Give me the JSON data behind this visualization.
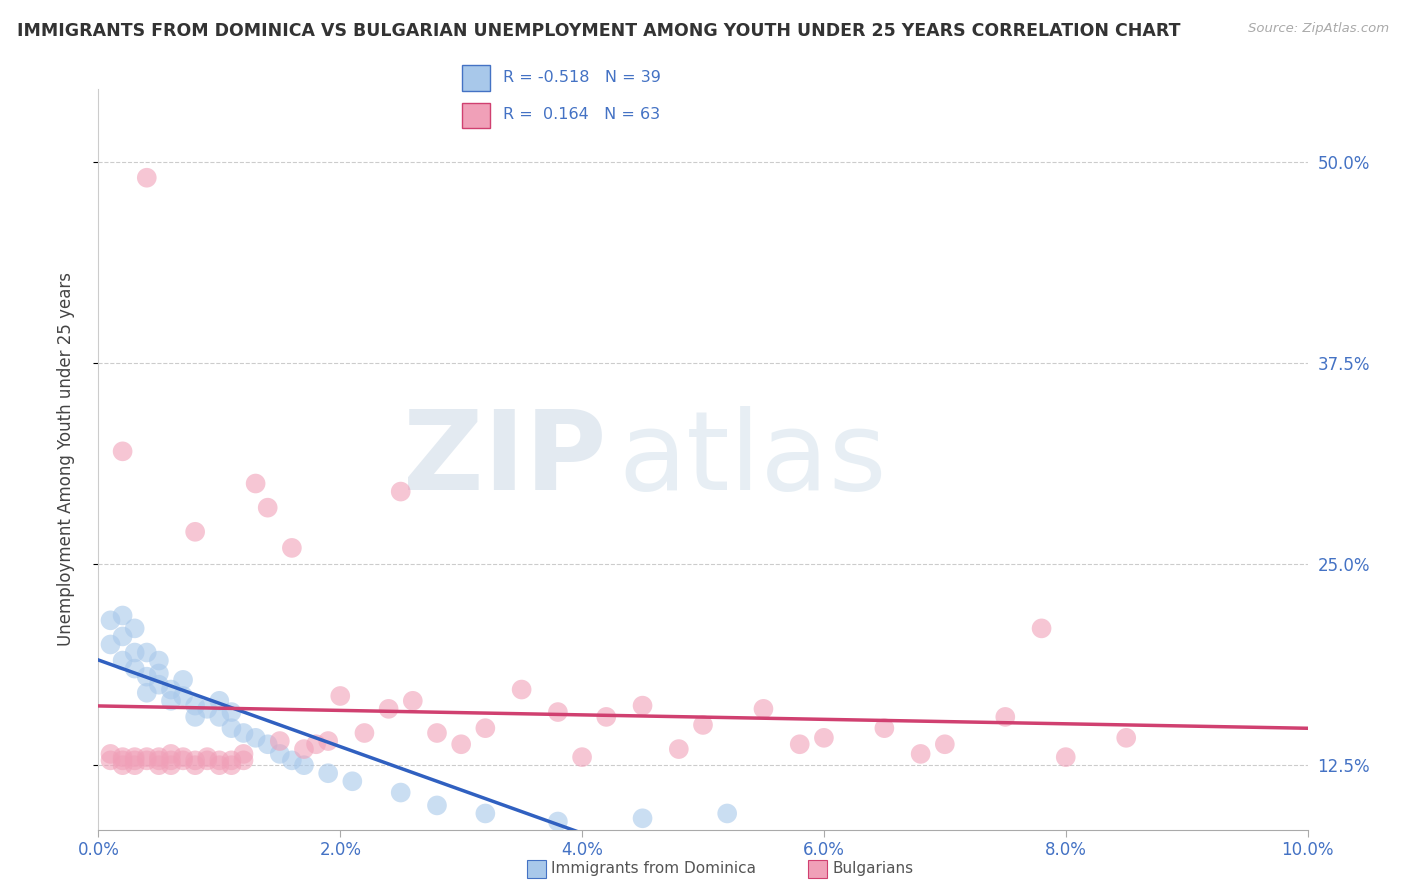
{
  "title": "IMMIGRANTS FROM DOMINICA VS BULGARIAN UNEMPLOYMENT AMONG YOUTH UNDER 25 YEARS CORRELATION CHART",
  "source": "Source: ZipAtlas.com",
  "ylabel": "Unemployment Among Youth under 25 years",
  "xlim_min": 0.0,
  "xlim_max": 0.1,
  "ylim_min": 0.085,
  "ylim_max": 0.545,
  "xticks": [
    0.0,
    0.02,
    0.04,
    0.06,
    0.08,
    0.1
  ],
  "xticklabels": [
    "0.0%",
    "2.0%",
    "4.0%",
    "6.0%",
    "8.0%",
    "10.0%"
  ],
  "yticks": [
    0.125,
    0.25,
    0.375,
    0.5
  ],
  "yticklabels": [
    "12.5%",
    "25.0%",
    "37.5%",
    "50.0%"
  ],
  "blue_color": "#a8c8ea",
  "pink_color": "#f0a0b8",
  "blue_line_color": "#3060c0",
  "pink_line_color": "#d04070",
  "watermark_zip": "ZIP",
  "watermark_atlas": "atlas",
  "blue_x": [
    0.001,
    0.001,
    0.002,
    0.002,
    0.002,
    0.003,
    0.003,
    0.003,
    0.004,
    0.004,
    0.004,
    0.005,
    0.005,
    0.005,
    0.006,
    0.006,
    0.007,
    0.007,
    0.008,
    0.008,
    0.009,
    0.01,
    0.01,
    0.011,
    0.011,
    0.012,
    0.013,
    0.014,
    0.015,
    0.016,
    0.017,
    0.019,
    0.021,
    0.025,
    0.028,
    0.032,
    0.038,
    0.045,
    0.052
  ],
  "blue_y": [
    0.2,
    0.215,
    0.19,
    0.205,
    0.218,
    0.195,
    0.185,
    0.21,
    0.18,
    0.195,
    0.17,
    0.182,
    0.175,
    0.19,
    0.172,
    0.165,
    0.168,
    0.178,
    0.162,
    0.155,
    0.16,
    0.155,
    0.165,
    0.158,
    0.148,
    0.145,
    0.142,
    0.138,
    0.132,
    0.128,
    0.125,
    0.12,
    0.115,
    0.108,
    0.1,
    0.095,
    0.09,
    0.092,
    0.095
  ],
  "pink_x": [
    0.001,
    0.001,
    0.002,
    0.002,
    0.002,
    0.003,
    0.003,
    0.003,
    0.004,
    0.004,
    0.004,
    0.005,
    0.005,
    0.005,
    0.006,
    0.006,
    0.006,
    0.007,
    0.007,
    0.008,
    0.008,
    0.009,
    0.009,
    0.01,
    0.01,
    0.011,
    0.011,
    0.012,
    0.012,
    0.013,
    0.014,
    0.015,
    0.016,
    0.017,
    0.018,
    0.019,
    0.02,
    0.022,
    0.024,
    0.026,
    0.028,
    0.03,
    0.032,
    0.035,
    0.038,
    0.04,
    0.042,
    0.045,
    0.048,
    0.05,
    0.055,
    0.058,
    0.06,
    0.065,
    0.068,
    0.07,
    0.075,
    0.078,
    0.08,
    0.085,
    0.002,
    0.008,
    0.025
  ],
  "pink_y": [
    0.132,
    0.128,
    0.13,
    0.128,
    0.125,
    0.128,
    0.13,
    0.125,
    0.49,
    0.13,
    0.128,
    0.125,
    0.13,
    0.128,
    0.128,
    0.125,
    0.132,
    0.13,
    0.128,
    0.128,
    0.125,
    0.13,
    0.128,
    0.128,
    0.125,
    0.128,
    0.125,
    0.132,
    0.128,
    0.3,
    0.285,
    0.14,
    0.26,
    0.135,
    0.138,
    0.14,
    0.168,
    0.145,
    0.16,
    0.165,
    0.145,
    0.138,
    0.148,
    0.172,
    0.158,
    0.13,
    0.155,
    0.162,
    0.135,
    0.15,
    0.16,
    0.138,
    0.142,
    0.148,
    0.132,
    0.138,
    0.155,
    0.21,
    0.13,
    0.142,
    0.32,
    0.27,
    0.295
  ]
}
